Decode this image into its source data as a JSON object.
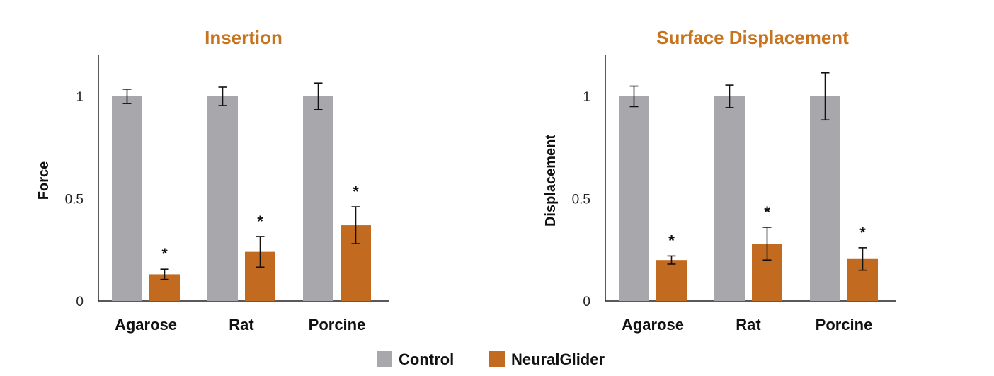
{
  "chart_data": [
    {
      "type": "bar",
      "title": "Insertion",
      "ylabel": "Force",
      "xlabel": "",
      "categories": [
        "Agarose",
        "Rat",
        "Porcine"
      ],
      "ylim": [
        0,
        1.2
      ],
      "yticks": [
        0,
        0.5,
        1
      ],
      "ytick_labels": [
        "0",
        "0.5",
        "1"
      ],
      "series": [
        {
          "name": "Control",
          "values": [
            1.0,
            1.0,
            1.0
          ],
          "errors": [
            0.035,
            0.045,
            0.065
          ]
        },
        {
          "name": "NeuralGlider",
          "values": [
            0.13,
            0.24,
            0.37
          ],
          "errors": [
            0.025,
            0.075,
            0.09
          ]
        }
      ],
      "significance_marks": [
        "*",
        "*",
        "*"
      ]
    },
    {
      "type": "bar",
      "title": "Surface Displacement",
      "ylabel": "Displacement",
      "xlabel": "",
      "categories": [
        "Agarose",
        "Rat",
        "Porcine"
      ],
      "ylim": [
        0,
        1.2
      ],
      "yticks": [
        0,
        0.5,
        1
      ],
      "ytick_labels": [
        "0",
        "0.5",
        "1"
      ],
      "series": [
        {
          "name": "Control",
          "values": [
            1.0,
            1.0,
            1.0
          ],
          "errors": [
            0.05,
            0.055,
            0.115
          ]
        },
        {
          "name": "NeuralGlider",
          "values": [
            0.2,
            0.28,
            0.205
          ],
          "errors": [
            0.02,
            0.08,
            0.055
          ]
        }
      ],
      "significance_marks": [
        "*",
        "*",
        "*"
      ]
    }
  ],
  "legend": {
    "items": [
      {
        "label": "Control",
        "color": "#a8a7ac"
      },
      {
        "label": "NeuralGlider",
        "color": "#c26a1f"
      }
    ]
  },
  "colors": {
    "control": "#a8a7ac",
    "glider": "#c26a1f",
    "title": "#c8741f",
    "axis": "#222222"
  }
}
